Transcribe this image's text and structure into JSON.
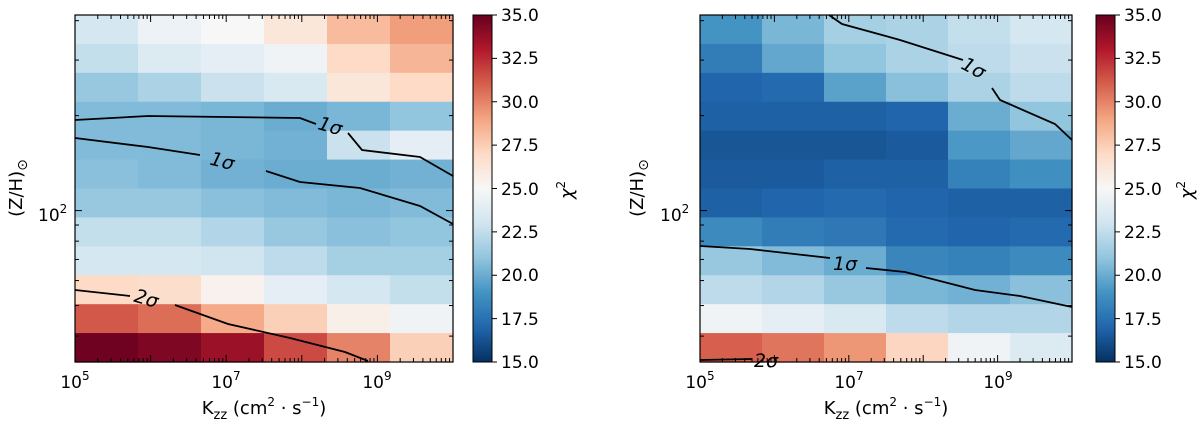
{
  "colorscale": {
    "vmin": 15.0,
    "vmax": 35.0,
    "stops": [
      "#053061",
      "#2166ac",
      "#4393c3",
      "#92c5de",
      "#d1e5f0",
      "#f7f7f7",
      "#fddbc7",
      "#f4a582",
      "#d6604d",
      "#b2182b",
      "#67001f"
    ],
    "tick_labels": [
      "35.0",
      "32.5",
      "30.0",
      "27.5",
      "25.0",
      "22.5",
      "20.0",
      "17.5",
      "15.0"
    ],
    "tick_values": [
      35.0,
      32.5,
      30.0,
      27.5,
      25.0,
      22.5,
      20.0,
      17.5,
      15.0
    ],
    "label": "χ",
    "label_sup": "2"
  },
  "axes": {
    "xlabel_main": "K",
    "xlabel_sub": "zz",
    "xlabel_unit_open": " (cm",
    "xlabel_unit_sup": "2",
    "xlabel_unit_close": " · s",
    "xlabel_unit_sup2": "−1",
    "xlabel_unit_end": ")",
    "ylabel_main": "(Z/H)",
    "ylabel_sub": "⊙",
    "x_ticks": [
      {
        "base": "10",
        "exp": "5",
        "logval": 5
      },
      {
        "base": "10",
        "exp": "7",
        "logval": 7
      },
      {
        "base": "10",
        "exp": "9",
        "logval": 9
      }
    ],
    "x_range_log": [
      5,
      10
    ],
    "y_tick": {
      "base": "10",
      "exp": "2",
      "logval": 2
    },
    "y_range_log": [
      1.52,
      2.62
    ]
  },
  "chart_data": [
    {
      "type": "heatmap",
      "title": "",
      "xlabel": "K_zz (cm^2 s^-1)",
      "ylabel": "(Z/H)_sun",
      "x_scale": "log",
      "y_scale": "log",
      "zlabel": "chi^2",
      "rows_top_to_bottom": [
        [
          23.2,
          24.4,
          25.0,
          26.2,
          28.2,
          29.2
        ],
        [
          22.6,
          23.6,
          24.0,
          24.6,
          27.0,
          28.4
        ],
        [
          21.2,
          21.8,
          22.8,
          23.4,
          26.2,
          27.0
        ],
        [
          20.6,
          20.6,
          20.4,
          20.0,
          20.4,
          21.0
        ],
        [
          20.6,
          20.6,
          20.4,
          20.2,
          22.8,
          24.0
        ],
        [
          20.8,
          20.6,
          20.2,
          20.0,
          20.0,
          20.2
        ],
        [
          21.2,
          21.2,
          20.8,
          20.6,
          20.4,
          20.6
        ],
        [
          22.6,
          22.6,
          22.0,
          21.2,
          20.8,
          21.0
        ],
        [
          23.2,
          23.2,
          23.0,
          22.4,
          21.6,
          21.6
        ],
        [
          27.0,
          26.8,
          25.4,
          24.0,
          23.2,
          22.6
        ],
        [
          31.2,
          30.6,
          28.8,
          27.4,
          25.6,
          24.6
        ],
        [
          34.8,
          34.4,
          33.6,
          31.6,
          30.0,
          27.4
        ]
      ],
      "contours": [
        {
          "label": "1σ"
        },
        {
          "label": "1σ"
        },
        {
          "label": "2σ"
        }
      ]
    },
    {
      "type": "heatmap",
      "title": "",
      "xlabel": "K_zz (cm^2 s^-1)",
      "ylabel": "(Z/H)_sun",
      "x_scale": "log",
      "y_scale": "log",
      "zlabel": "chi^2",
      "rows_top_to_bottom": [
        [
          19.0,
          20.4,
          21.6,
          21.8,
          22.6,
          23.2
        ],
        [
          18.0,
          19.8,
          21.0,
          21.8,
          22.4,
          22.8
        ],
        [
          17.0,
          17.2,
          19.6,
          20.8,
          21.8,
          22.4
        ],
        [
          16.8,
          16.8,
          16.8,
          17.0,
          20.0,
          21.0
        ],
        [
          16.4,
          16.4,
          16.4,
          16.6,
          19.2,
          19.8
        ],
        [
          16.6,
          16.6,
          16.8,
          16.8,
          18.2,
          18.8
        ],
        [
          16.8,
          17.0,
          17.2,
          17.0,
          16.8,
          16.8
        ],
        [
          18.6,
          18.0,
          17.8,
          17.2,
          17.0,
          17.2
        ],
        [
          21.2,
          20.6,
          20.0,
          18.4,
          18.2,
          18.6
        ],
        [
          22.4,
          22.0,
          21.2,
          20.4,
          20.2,
          20.8
        ],
        [
          24.6,
          24.0,
          23.4,
          22.4,
          22.0,
          22.0
        ],
        [
          31.0,
          30.4,
          29.4,
          27.2,
          24.6,
          23.6
        ]
      ],
      "contours": [
        {
          "label": "1σ"
        },
        {
          "label": "1σ"
        },
        {
          "label": "2σ"
        }
      ]
    }
  ]
}
